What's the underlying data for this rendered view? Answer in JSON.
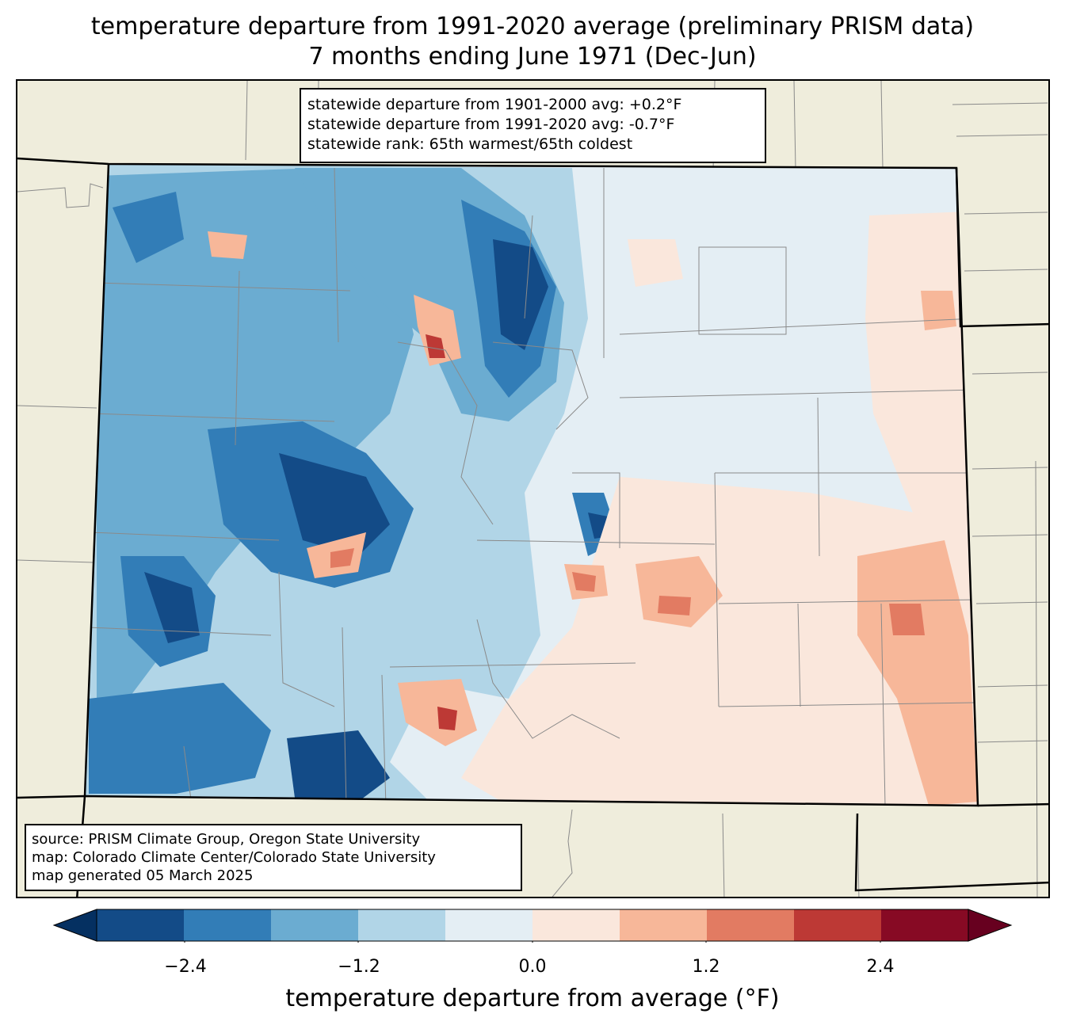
{
  "title": {
    "line1": "temperature departure from 1991-2020 average (preliminary PRISM data)",
    "line2": "7 months ending June 1971 (Dec-Jun)"
  },
  "stats": {
    "line1": "statewide departure from 1901-2000 avg: +0.2°F",
    "line2": "statewide departure from 1991-2020 avg: -0.7°F",
    "line3": "statewide rank: 65th warmest/65th coldest"
  },
  "source": {
    "line1": "source: PRISM Climate Group, Oregon State University",
    "line2": "map: Colorado Climate Center/Colorado State University",
    "line3": "map generated 05 March 2025"
  },
  "colorbar": {
    "label": "temperature departure from average (°F)",
    "ticks": [
      "−2.4",
      "−1.2",
      "0.0",
      "1.2",
      "2.4"
    ],
    "colors": [
      "#053061",
      "#134b87",
      "#327db7",
      "#6bacd1",
      "#b1d5e7",
      "#e4eef4",
      "#fae7dc",
      "#f7b799",
      "#e27b62",
      "#bd3935",
      "#870a24",
      "#67001f"
    ]
  },
  "map": {
    "land_color": "#efeddc",
    "state_fill": "#e4eef4",
    "region": "Colorado"
  }
}
